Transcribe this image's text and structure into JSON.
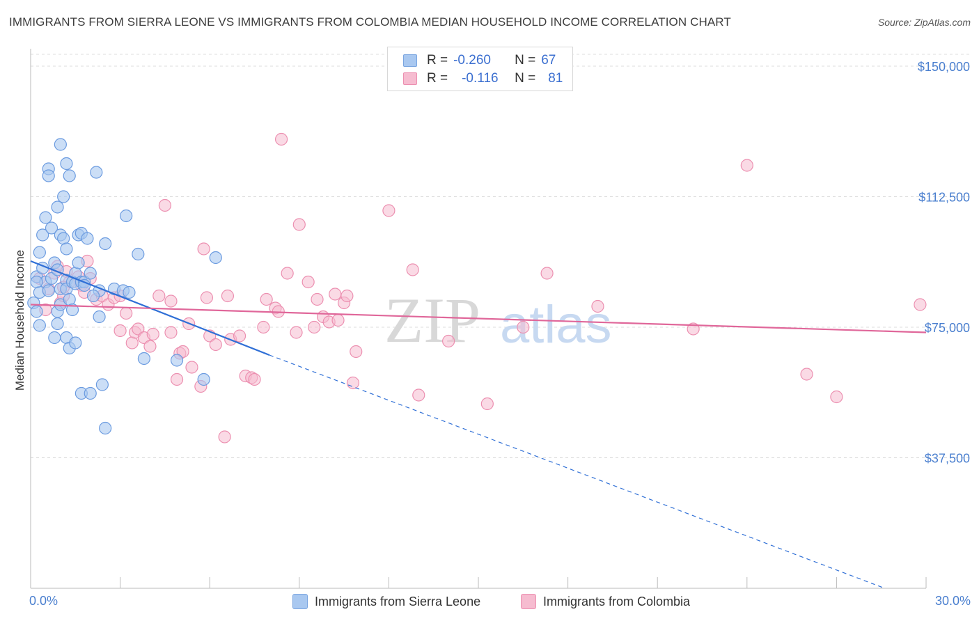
{
  "header": {
    "title": "IMMIGRANTS FROM SIERRA LEONE VS IMMIGRANTS FROM COLOMBIA MEDIAN HOUSEHOLD INCOME CORRELATION CHART",
    "source": "Source: ZipAtlas.com"
  },
  "legend": {
    "rows": [
      {
        "r_label": "R =",
        "r_value": "-0.260",
        "n_label": "N =",
        "n_value": "67"
      },
      {
        "r_label": "R =",
        "r_value": "-0.116",
        "n_label": "N =",
        "n_value": "81"
      }
    ]
  },
  "bottom_legend": {
    "sierra_leone": "Immigrants from Sierra Leone",
    "colombia": "Immigrants from Colombia"
  },
  "watermark": {
    "zip": "ZIP",
    "atlas": "atlas"
  },
  "colors": {
    "blue_fill": "#a9c8f0",
    "blue_stroke": "#6b9be0",
    "blue_line": "#2f6fd6",
    "pink_fill": "#f6bcd0",
    "pink_stroke": "#ec8fb0",
    "pink_line": "#e0679a",
    "grid": "#dcdcdc",
    "tick_text": "#4a7fcf"
  },
  "chart_data": {
    "type": "scatter",
    "title": "IMMIGRANTS FROM SIERRA LEONE VS IMMIGRANTS FROM COLOMBIA MEDIAN HOUSEHOLD INCOME CORRELATION CHART",
    "xlabel": "",
    "ylabel": "Median Household Income",
    "xlim": [
      0,
      30
    ],
    "ylim": [
      0,
      155000
    ],
    "x_tick_labels": [
      "0.0%",
      "30.0%"
    ],
    "y_ticks": [
      37500,
      75000,
      112500,
      150000
    ],
    "y_tick_labels": [
      "$37,500",
      "$75,000",
      "$112,500",
      "$150,000"
    ],
    "series": [
      {
        "name": "Immigrants from Sierra Leone",
        "r": -0.26,
        "n": 67,
        "trend": {
          "x0": 0,
          "y0": 94000,
          "x1": 8.0,
          "y1": 67000,
          "dash_to_x": 30,
          "dash_to_y": -4500
        },
        "points": [
          [
            0.1,
            82000
          ],
          [
            0.2,
            79500
          ],
          [
            0.2,
            89500
          ],
          [
            0.3,
            96500
          ],
          [
            0.3,
            75500
          ],
          [
            0.3,
            85000
          ],
          [
            0.4,
            101500
          ],
          [
            0.5,
            106500
          ],
          [
            0.5,
            88000
          ],
          [
            0.6,
            120500
          ],
          [
            0.6,
            118500
          ],
          [
            0.6,
            85500
          ],
          [
            0.7,
            103500
          ],
          [
            0.8,
            93500
          ],
          [
            0.8,
            72000
          ],
          [
            0.9,
            109500
          ],
          [
            0.9,
            79500
          ],
          [
            0.9,
            76000
          ],
          [
            1.0,
            101500
          ],
          [
            1.0,
            86000
          ],
          [
            1.0,
            81500
          ],
          [
            1.0,
            127500
          ],
          [
            1.1,
            100500
          ],
          [
            1.1,
            112500
          ],
          [
            1.2,
            122000
          ],
          [
            1.2,
            88500
          ],
          [
            1.2,
            86000
          ],
          [
            1.2,
            72000
          ],
          [
            1.2,
            97500
          ],
          [
            1.3,
            118500
          ],
          [
            1.3,
            83000
          ],
          [
            1.3,
            69000
          ],
          [
            1.4,
            88000
          ],
          [
            1.5,
            90500
          ],
          [
            1.5,
            87500
          ],
          [
            1.5,
            70500
          ],
          [
            1.6,
            101500
          ],
          [
            1.6,
            93500
          ],
          [
            1.7,
            88000
          ],
          [
            1.7,
            102000
          ],
          [
            1.7,
            56000
          ],
          [
            1.8,
            88000
          ],
          [
            1.9,
            100500
          ],
          [
            2.0,
            56000
          ],
          [
            2.0,
            90500
          ],
          [
            2.2,
            119500
          ],
          [
            2.3,
            78000
          ],
          [
            2.3,
            85500
          ],
          [
            2.4,
            58500
          ],
          [
            2.5,
            46000
          ],
          [
            2.5,
            99000
          ],
          [
            2.8,
            86000
          ],
          [
            3.1,
            85500
          ],
          [
            3.2,
            107000
          ],
          [
            3.3,
            85000
          ],
          [
            3.6,
            96000
          ],
          [
            3.8,
            66000
          ],
          [
            4.9,
            65500
          ],
          [
            5.8,
            60000
          ],
          [
            6.2,
            95000
          ],
          [
            0.2,
            88000
          ],
          [
            0.4,
            92000
          ],
          [
            0.7,
            89000
          ],
          [
            1.4,
            80000
          ],
          [
            1.8,
            87000
          ],
          [
            0.9,
            91500
          ],
          [
            2.1,
            84000
          ]
        ]
      },
      {
        "name": "Immigrants from Colombia",
        "r": -0.116,
        "n": 81,
        "trend": {
          "x0": 0,
          "y0": 81500,
          "x1": 30,
          "y1": 73500
        },
        "points": [
          [
            0.3,
            89000
          ],
          [
            0.5,
            80000
          ],
          [
            0.6,
            86000
          ],
          [
            0.8,
            90500
          ],
          [
            0.9,
            92500
          ],
          [
            1.0,
            82000
          ],
          [
            1.1,
            84000
          ],
          [
            1.2,
            91000
          ],
          [
            1.3,
            88000
          ],
          [
            1.6,
            89500
          ],
          [
            1.7,
            87000
          ],
          [
            1.8,
            85000
          ],
          [
            1.9,
            94000
          ],
          [
            2.0,
            89000
          ],
          [
            2.2,
            83000
          ],
          [
            2.4,
            84000
          ],
          [
            2.6,
            81500
          ],
          [
            2.8,
            83500
          ],
          [
            3.0,
            84000
          ],
          [
            3.0,
            74000
          ],
          [
            3.2,
            79000
          ],
          [
            3.4,
            70500
          ],
          [
            3.5,
            73500
          ],
          [
            3.6,
            74500
          ],
          [
            3.8,
            72000
          ],
          [
            4.0,
            69500
          ],
          [
            4.1,
            73000
          ],
          [
            4.3,
            84000
          ],
          [
            4.5,
            110000
          ],
          [
            4.7,
            82500
          ],
          [
            4.7,
            73500
          ],
          [
            4.9,
            60000
          ],
          [
            5.0,
            67500
          ],
          [
            5.1,
            68000
          ],
          [
            5.3,
            76000
          ],
          [
            5.4,
            63500
          ],
          [
            5.7,
            58000
          ],
          [
            5.8,
            97500
          ],
          [
            5.9,
            83500
          ],
          [
            6.0,
            72500
          ],
          [
            6.2,
            70000
          ],
          [
            6.5,
            43500
          ],
          [
            6.6,
            84000
          ],
          [
            6.7,
            71500
          ],
          [
            7.0,
            72500
          ],
          [
            7.2,
            61000
          ],
          [
            7.4,
            60500
          ],
          [
            7.5,
            60000
          ],
          [
            7.8,
            75000
          ],
          [
            7.9,
            83000
          ],
          [
            8.2,
            80500
          ],
          [
            8.3,
            79500
          ],
          [
            8.4,
            129000
          ],
          [
            8.6,
            90500
          ],
          [
            8.9,
            73500
          ],
          [
            9.0,
            104500
          ],
          [
            9.3,
            88000
          ],
          [
            9.5,
            75000
          ],
          [
            9.6,
            83000
          ],
          [
            9.8,
            78000
          ],
          [
            10.0,
            76500
          ],
          [
            10.2,
            84500
          ],
          [
            10.3,
            77000
          ],
          [
            10.5,
            82000
          ],
          [
            10.6,
            84000
          ],
          [
            10.8,
            59000
          ],
          [
            10.9,
            68000
          ],
          [
            12.0,
            108500
          ],
          [
            12.8,
            91500
          ],
          [
            13.0,
            55500
          ],
          [
            14.0,
            71000
          ],
          [
            15.3,
            53000
          ],
          [
            16.5,
            75000
          ],
          [
            17.3,
            90500
          ],
          [
            19.0,
            81000
          ],
          [
            22.2,
            74500
          ],
          [
            24.0,
            121500
          ],
          [
            26.0,
            61500
          ],
          [
            27.0,
            55000
          ],
          [
            29.8,
            81500
          ],
          [
            1.1,
            86500
          ]
        ]
      }
    ]
  }
}
